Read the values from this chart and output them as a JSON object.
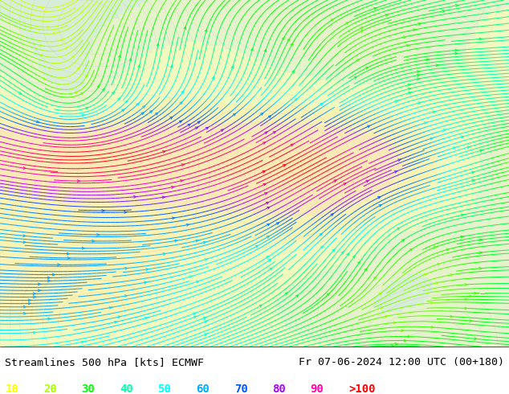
{
  "title_left": "Streamlines 500 hPa [kts] ECMWF",
  "title_right": "Fr 07-06-2024 12:00 UTC (00+180)",
  "legend_values": [
    "10",
    "20",
    "30",
    "40",
    "50",
    "60",
    "70",
    "80",
    "90",
    ">100"
  ],
  "legend_colors": [
    "#ffff00",
    "#aaff00",
    "#00ff00",
    "#00ffaa",
    "#00ffff",
    "#00aaff",
    "#0055ff",
    "#aa00ff",
    "#ff00aa",
    "#ff0000"
  ],
  "bg_color": "#e8f4f8",
  "map_bg": "#c8e6c8",
  "figsize": [
    6.34,
    4.9
  ],
  "dpi": 100,
  "font_color": "#000000",
  "title_fontsize": 9.5,
  "legend_fontsize": 10,
  "streamline_seed": 42,
  "num_streamlines": 800
}
